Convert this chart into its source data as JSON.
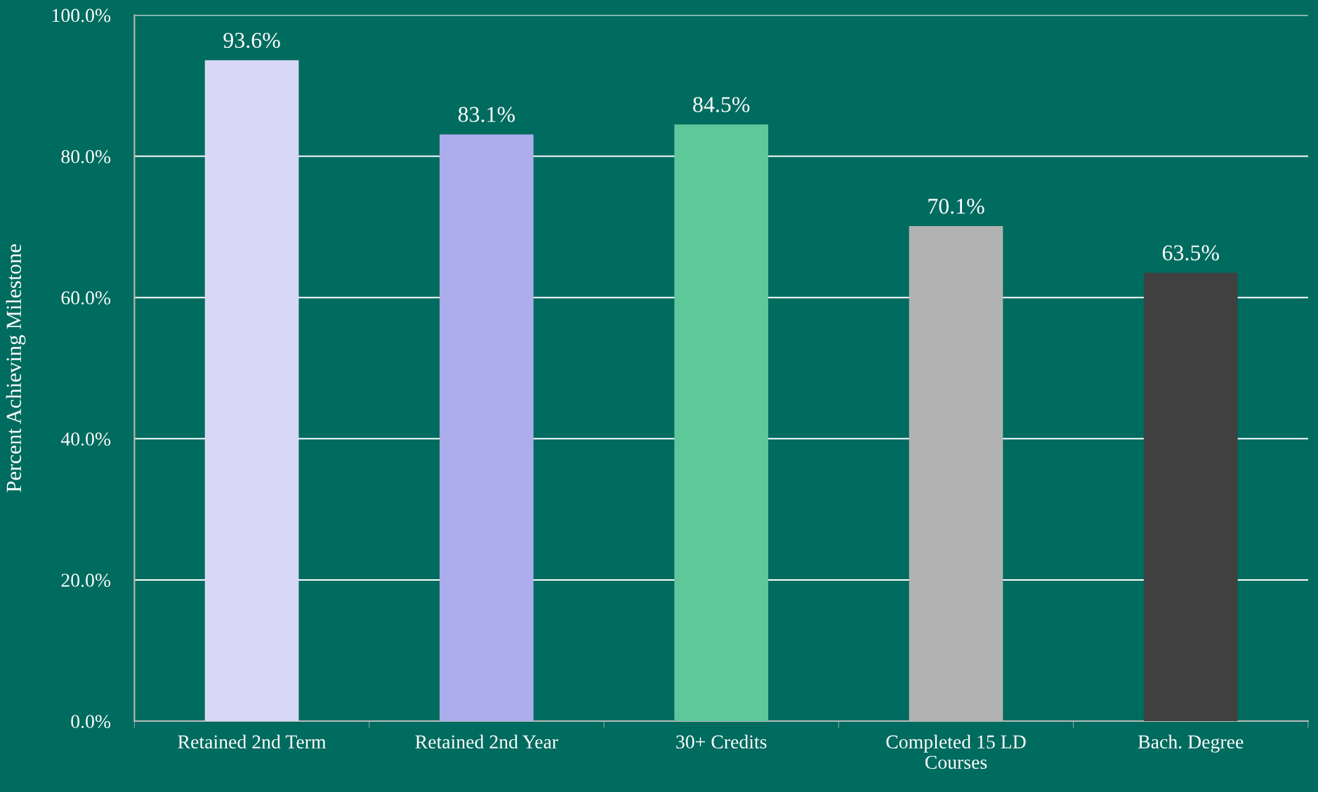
{
  "chart_data": {
    "type": "bar",
    "ylabel": "Percent Achieving Milestone",
    "categories": [
      "Retained 2nd Term",
      "Retained 2nd Year",
      "30+ Credits",
      "Completed 15 LD\nCourses",
      "Bach. Degree"
    ],
    "values": [
      93.6,
      83.1,
      84.5,
      70.1,
      63.5
    ],
    "colors": [
      "#d8d8f6",
      "#adadec",
      "#5ec89a",
      "#b2b2b2",
      "#404040"
    ],
    "ylim": [
      0,
      100
    ],
    "yticks": [
      {
        "value": 0,
        "label": "0.0%"
      },
      {
        "value": 20,
        "label": "20.0%"
      },
      {
        "value": 40,
        "label": "40.0%"
      },
      {
        "value": 60,
        "label": "60.0%"
      },
      {
        "value": 80,
        "label": "80.0%"
      },
      {
        "value": 100,
        "label": "100.0%"
      }
    ],
    "value_labels": [
      "93.6%",
      "83.1%",
      "84.5%",
      "70.1%",
      "63.5%"
    ],
    "grid": "y"
  }
}
